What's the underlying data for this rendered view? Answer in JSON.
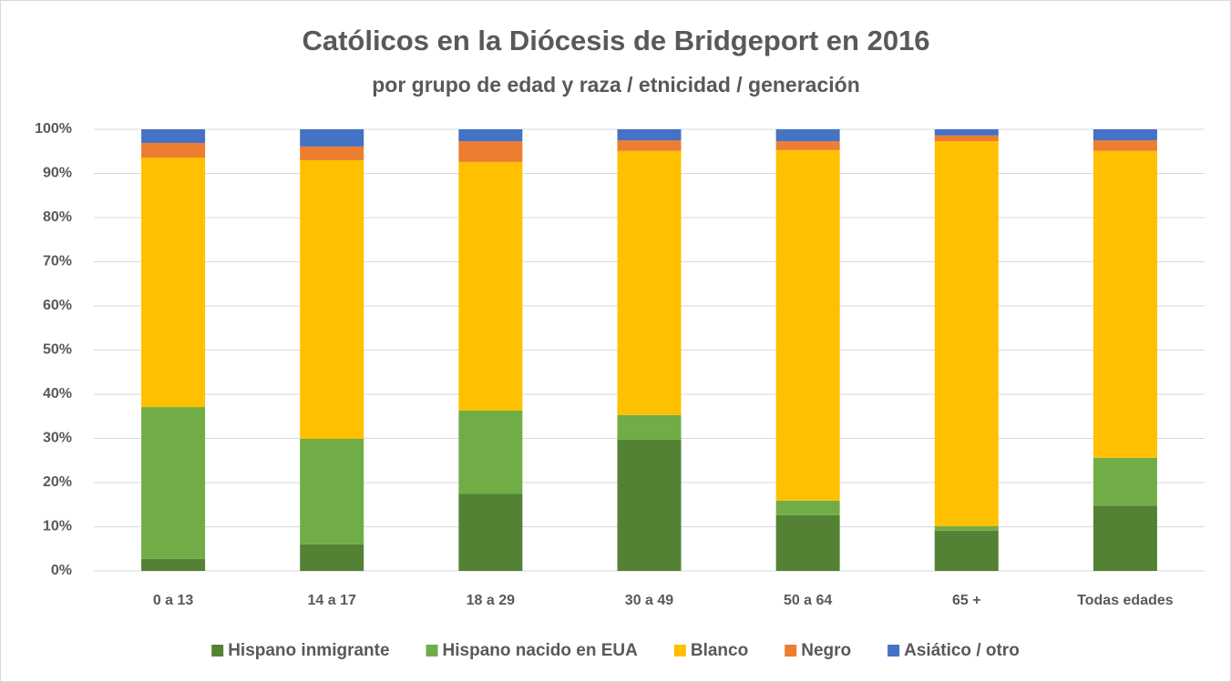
{
  "chart_data": {
    "type": "stacked_bar",
    "title": "Católicos en la Diócesis de Bridgeport en 2016",
    "subtitle": "por grupo de edad y raza / etnicidad / generación",
    "categories": [
      "0 a 13",
      "14 a 17",
      "18 a 29",
      "30 a 49",
      "50 a 64",
      "65 +",
      "Todas edades"
    ],
    "series": [
      {
        "name": "Hispano inmigrante",
        "color": "#548235",
        "values": [
          2.7,
          6.0,
          17.5,
          29.7,
          12.6,
          9.1,
          14.8
        ]
      },
      {
        "name": "Hispano nacido en EUA",
        "color": "#70ad47",
        "values": [
          34.4,
          23.9,
          18.8,
          5.6,
          3.3,
          1.0,
          10.8
        ]
      },
      {
        "name": "Blanco",
        "color": "#ffc000",
        "values": [
          56.5,
          63.1,
          56.3,
          59.8,
          79.4,
          87.2,
          69.5
        ]
      },
      {
        "name": "Negro",
        "color": "#ed7d31",
        "values": [
          3.3,
          3.1,
          4.7,
          2.4,
          2.0,
          1.3,
          2.4
        ]
      },
      {
        "name": "Asiático / otro",
        "color": "#4472c4",
        "values": [
          3.1,
          3.9,
          2.7,
          2.5,
          2.7,
          1.4,
          2.5
        ]
      }
    ],
    "ylim": [
      0,
      100
    ],
    "yticks": [
      {
        "value": 0,
        "label": "0%"
      },
      {
        "value": 10,
        "label": "10%"
      },
      {
        "value": 20,
        "label": "20%"
      },
      {
        "value": 30,
        "label": "30%"
      },
      {
        "value": 40,
        "label": "40%"
      },
      {
        "value": 50,
        "label": "50%"
      },
      {
        "value": 60,
        "label": "60%"
      },
      {
        "value": 70,
        "label": "70%"
      },
      {
        "value": 80,
        "label": "80%"
      },
      {
        "value": 90,
        "label": "90%"
      },
      {
        "value": 100,
        "label": "100%"
      }
    ],
    "grid": true,
    "legend": "bottom"
  }
}
